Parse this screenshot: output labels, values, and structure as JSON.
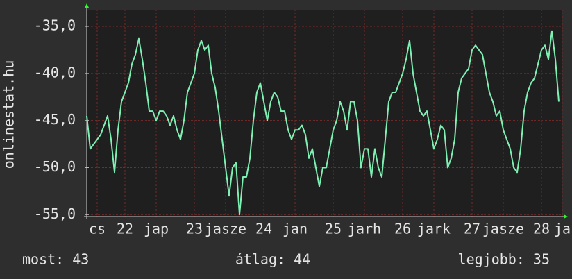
{
  "chart_data": {
    "type": "line",
    "ylabel": "onlinestat.hu",
    "xlim": [
      21.45,
      28.3
    ],
    "ylim": [
      -55.2,
      -33.3
    ],
    "yticks": [
      {
        "value": -55,
        "label": "-55,0"
      },
      {
        "value": -50,
        "label": "-50,0"
      },
      {
        "value": -45,
        "label": "-45,0"
      },
      {
        "value": -40,
        "label": "-40,0"
      },
      {
        "value": -35,
        "label": "-35,0"
      }
    ],
    "xticks": [
      {
        "value": 21.6,
        "label": "cs"
      },
      22,
      {
        "value": 22.45,
        "label": "jap"
      },
      23,
      {
        "value": 23.45,
        "label": "jasze"
      },
      24,
      {
        "value": 24.45,
        "label": "jan"
      },
      25,
      {
        "value": 25.45,
        "label": "jarh"
      },
      26,
      {
        "value": 26.45,
        "label": "jark"
      },
      27,
      {
        "value": 27.45,
        "label": "jasze"
      },
      28,
      {
        "value": 28.3,
        "label": "ja"
      }
    ],
    "grid": true,
    "x": [
      21.45,
      21.5,
      21.55,
      21.6,
      21.65,
      21.7,
      21.75,
      21.8,
      21.85,
      21.9,
      21.95,
      22,
      22.05,
      22.1,
      22.15,
      22.2,
      22.25,
      22.3,
      22.35,
      22.4,
      22.45,
      22.5,
      22.55,
      22.6,
      22.65,
      22.7,
      22.75,
      22.8,
      22.85,
      22.9,
      22.95,
      23,
      23.05,
      23.1,
      23.15,
      23.2,
      23.25,
      23.3,
      23.35,
      23.4,
      23.45,
      23.5,
      23.55,
      23.6,
      23.65,
      23.7,
      23.75,
      23.8,
      23.85,
      23.9,
      23.95,
      24,
      24.05,
      24.1,
      24.15,
      24.2,
      24.25,
      24.3,
      24.35,
      24.4,
      24.45,
      24.5,
      24.55,
      24.6,
      24.65,
      24.7,
      24.75,
      24.8,
      24.85,
      24.9,
      24.95,
      25,
      25.05,
      25.1,
      25.15,
      25.2,
      25.25,
      25.3,
      25.35,
      25.4,
      25.45,
      25.5,
      25.55,
      25.6,
      25.65,
      25.7,
      25.75,
      25.8,
      25.85,
      25.9,
      25.95,
      26,
      26.05,
      26.1,
      26.15,
      26.2,
      26.25,
      26.3,
      26.35,
      26.4,
      26.45,
      26.5,
      26.55,
      26.6,
      26.65,
      26.7,
      26.75,
      26.8,
      26.85,
      26.9,
      26.95,
      27,
      27.05,
      27.1,
      27.15,
      27.2,
      27.25,
      27.3,
      27.35,
      27.4,
      27.45,
      27.5,
      27.55,
      27.6,
      27.65,
      27.7,
      27.75,
      27.8,
      27.85,
      27.9,
      27.95,
      28,
      28.05,
      28.1,
      28.15,
      28.2,
      28.25
    ],
    "series": [
      {
        "color": "#7ff0b4",
        "values": [
          -44.5,
          -48,
          -47.5,
          -47,
          -46.5,
          -45.5,
          -44.5,
          -47,
          -50.5,
          -46,
          -43,
          -42,
          -41,
          -39,
          -38,
          -36.3,
          -38.5,
          -41,
          -44,
          -44,
          -45,
          -44,
          -44,
          -44.5,
          -45.5,
          -44.5,
          -46,
          -47,
          -45,
          -42,
          -41,
          -40,
          -37.5,
          -36.5,
          -37.5,
          -37,
          -40,
          -41.5,
          -44,
          -47,
          -50,
          -53,
          -50,
          -49.5,
          -55,
          -51,
          -51,
          -49,
          -45,
          -42,
          -41,
          -43,
          -45,
          -43,
          -42,
          -42.5,
          -44,
          -44,
          -46,
          -47,
          -46,
          -46,
          -45.5,
          -46.5,
          -49,
          -48,
          -50,
          -52,
          -50,
          -50,
          -48,
          -46,
          -45,
          -43,
          -44,
          -46,
          -43,
          -43,
          -45,
          -50,
          -48,
          -48,
          -51,
          -48,
          -50,
          -51,
          -47,
          -43,
          -42,
          -42,
          -41,
          -40,
          -38.5,
          -36.5,
          -40,
          -42,
          -44,
          -44.5,
          -44,
          -46,
          -48,
          -47,
          -45.5,
          -46,
          -50,
          -49,
          -47,
          -42,
          -40.5,
          -40,
          -39.5,
          -37.5,
          -37,
          -37.5,
          -38,
          -40,
          -42,
          -43,
          -44.5,
          -44,
          -46,
          -47,
          -48,
          -50,
          -50.5,
          -48,
          -44,
          -42,
          -41,
          -40.5,
          -39,
          -37.5,
          -37,
          -38.5,
          -35.5,
          -38.5,
          -43
        ]
      }
    ],
    "footer": [
      "most: 43",
      "átlag: 44",
      "legjobb: 35"
    ]
  }
}
